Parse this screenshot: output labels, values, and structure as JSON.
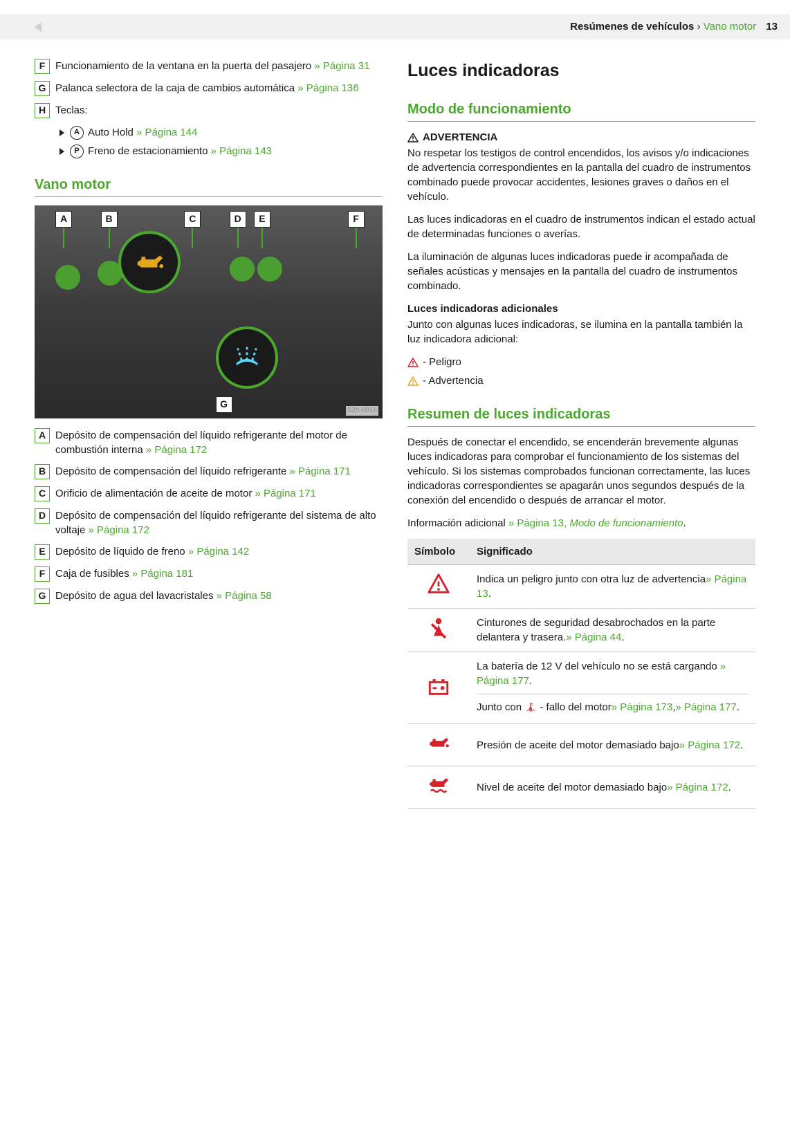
{
  "colors": {
    "green": "#4ba82e",
    "red": "#d4212a",
    "amber": "#e3a81a",
    "text": "#1a1a1a",
    "grey_bg": "#f0f0f0",
    "border": "#cccccc"
  },
  "header": {
    "section": "Resúmenes de vehículos",
    "separator": " › ",
    "subsection": "Vano motor",
    "page": "13"
  },
  "left": {
    "top_items": [
      {
        "letter": "F",
        "text": "Funcionamiento de la ventana en la puerta del pasajero ",
        "link": "» Página 31"
      },
      {
        "letter": "G",
        "text": "Palanca selectora de la caja de cambios automática ",
        "link": "» Página 136"
      },
      {
        "letter": "H",
        "text": "Teclas:"
      }
    ],
    "sub_items": [
      {
        "icon": "A",
        "text": "Auto Hold ",
        "link": "» Página 144"
      },
      {
        "icon": "P",
        "text": "Freno de estacionamiento ",
        "link": "» Página 143"
      }
    ],
    "section_title": "Vano motor",
    "figure": {
      "callouts": [
        "A",
        "B",
        "C",
        "D",
        "E",
        "F"
      ],
      "callout_bottom": "G",
      "code": "S20-0016"
    },
    "engine_items": [
      {
        "letter": "A",
        "text": "Depósito de compensación del líquido refrigerante del motor de combustión interna ",
        "link": "» Página 172"
      },
      {
        "letter": "B",
        "text": "Depósito de compensación del líquido refrigerante ",
        "link": "» Página 171"
      },
      {
        "letter": "C",
        "text": "Orificio de alimentación de aceite de motor ",
        "link": "» Página 171"
      },
      {
        "letter": "D",
        "text": "Depósito de compensación del líquido refrigerante del sistema de alto voltaje ",
        "link": "» Página 172"
      },
      {
        "letter": "E",
        "text": "Depósito de líquido de freno ",
        "link": "» Página 142"
      },
      {
        "letter": "F",
        "text": "Caja de fusibles ",
        "link": "» Página 181"
      },
      {
        "letter": "G",
        "text": "Depósito de agua del lavacristales ",
        "link": "» Página 58"
      }
    ]
  },
  "right": {
    "h1": "Luces indicadoras",
    "h2a": "Modo de funcionamiento",
    "warn_label": "ADVERTENCIA",
    "warn_text": "No respetar los testigos de control encendidos, los avisos y/o indicaciones de advertencia correspondientes en la pantalla del cuadro de instrumentos combinado puede provocar accidentes, lesiones graves o daños en el vehículo.",
    "p1": "Las luces indicadoras en el cuadro de instrumentos indican el estado actual de determinadas funciones o averías.",
    "p2": "La iluminación de algunas luces indicadoras puede ir acompañada de señales acústicas y mensajes en la pantalla del cuadro de instrumentos combinado.",
    "sub_bold": "Luces indicadoras adicionales",
    "p3": "Junto con algunas luces indicadoras, se ilumina en la pantalla también la luz indicadora adicional:",
    "legend": [
      {
        "color": "#d4212a",
        "text": " - Peligro"
      },
      {
        "color": "#e3a81a",
        "text": " - Advertencia"
      }
    ],
    "h2b": "Resumen de luces indicadoras",
    "p4": "Después de conectar el encendido, se encenderán brevemente algunas luces indicadoras para comprobar el funcionamiento de los sistemas del vehículo. Si los sistemas comprobados funcionan correctamente, las luces indicadoras correspondientes se apagarán unos segundos después de la conexión del encendido o después de arrancar el motor.",
    "p5_pre": "Información adicional ",
    "p5_link": "» Página 13, ",
    "p5_ital": "Modo de funcionamiento",
    "p5_post": ".",
    "table": {
      "col1": "Símbolo",
      "col2": "Significado",
      "rows": [
        {
          "icon": "warning-triangle",
          "text": "Indica un peligro junto con otra luz de advertencia",
          "link": "» Página 13",
          "post": "."
        },
        {
          "icon": "seatbelt",
          "text": "Cinturones de seguridad desabrochados en la parte delantera y trasera.",
          "link": "» Página 44",
          "post": "."
        },
        {
          "icon": "battery",
          "cells": [
            {
              "text": "La batería de 12 V del vehículo no se está cargando ",
              "link": "» Página 177",
              "post": "."
            },
            {
              "text_pre": "Junto con ",
              "inline_icon": "temp",
              "text_mid": " - fallo del motor",
              "link1": "» Página 173",
              "sep": ",",
              "link2": "» Página 177",
              "post": "."
            }
          ]
        },
        {
          "icon": "oil-pressure",
          "text": "Presión de aceite del motor demasiado bajo",
          "link": "» Página 172",
          "post": "."
        },
        {
          "icon": "oil-level",
          "text": "Nivel de aceite del motor demasiado bajo",
          "link": "» Página 172",
          "post": "."
        }
      ]
    }
  }
}
